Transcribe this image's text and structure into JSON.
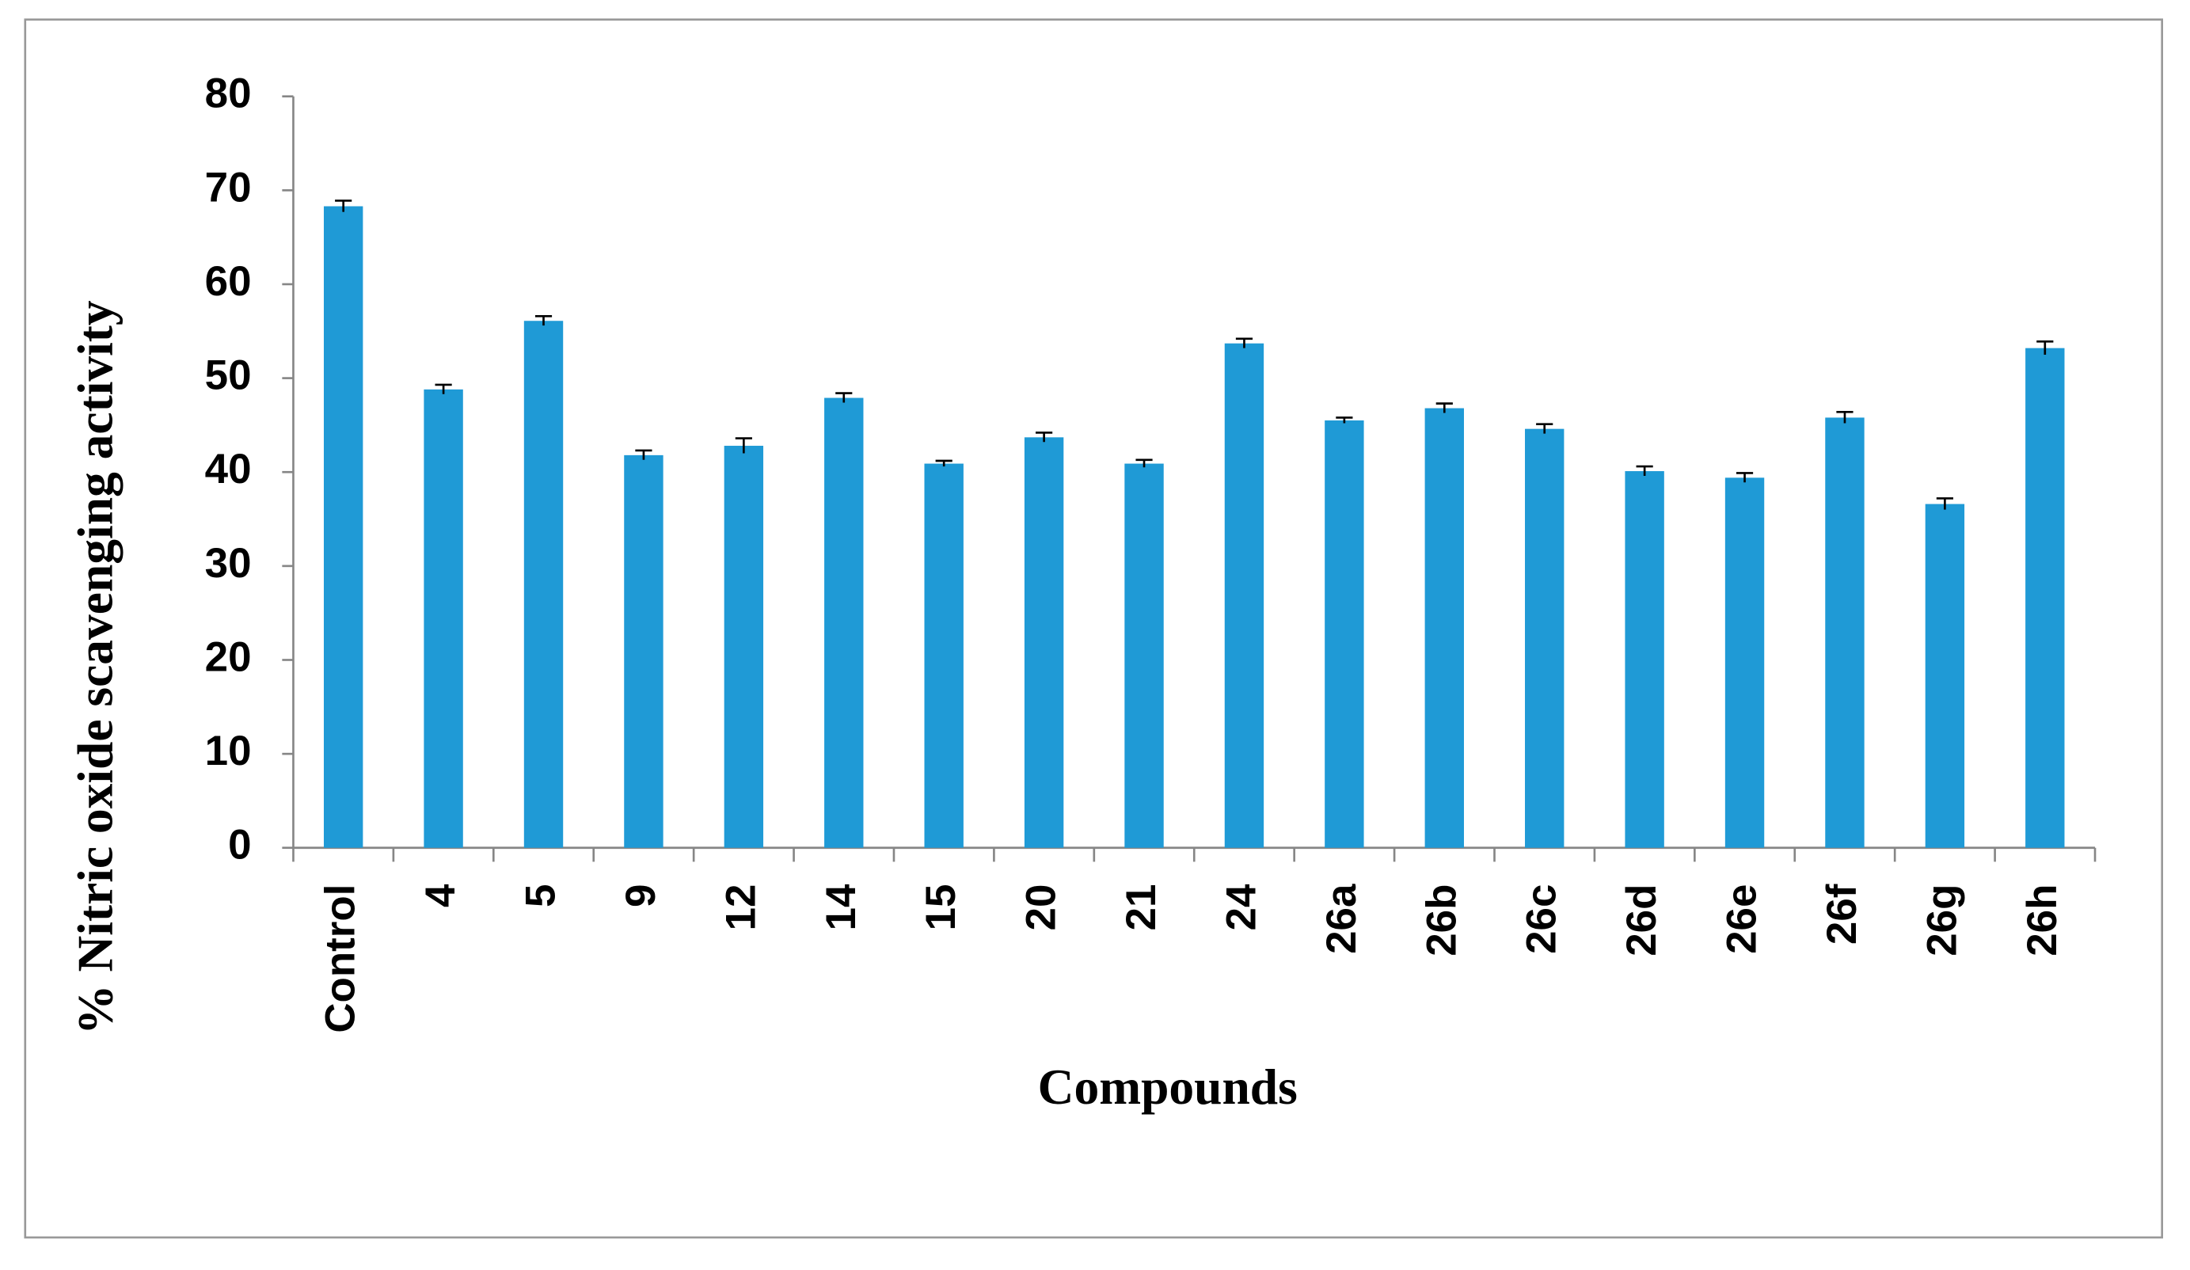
{
  "chart_data": {
    "type": "bar",
    "x_label": "Compounds",
    "y_label": "%  Nitric oxide scavenging  activity",
    "categories": [
      "Control",
      "4",
      "5",
      "9",
      "12",
      "14",
      "15",
      "20",
      "21",
      "24",
      "26a",
      "26b",
      "26c",
      "26d",
      "26e",
      "26f",
      "26g",
      "26h"
    ],
    "values": [
      68.3,
      48.8,
      56.1,
      41.8,
      42.8,
      47.9,
      40.9,
      43.7,
      40.9,
      53.7,
      45.5,
      46.8,
      44.6,
      40.1,
      39.4,
      45.8,
      36.6,
      53.2
    ],
    "errors": [
      0.6,
      0.5,
      0.5,
      0.5,
      0.8,
      0.5,
      0.3,
      0.5,
      0.4,
      0.5,
      0.3,
      0.5,
      0.5,
      0.5,
      0.5,
      0.6,
      0.6,
      0.7
    ],
    "color": "#1f9ad6",
    "ylim": [
      0,
      80
    ],
    "yticks": [
      0,
      10,
      20,
      30,
      40,
      50,
      60,
      70,
      80
    ],
    "grid": false
  }
}
